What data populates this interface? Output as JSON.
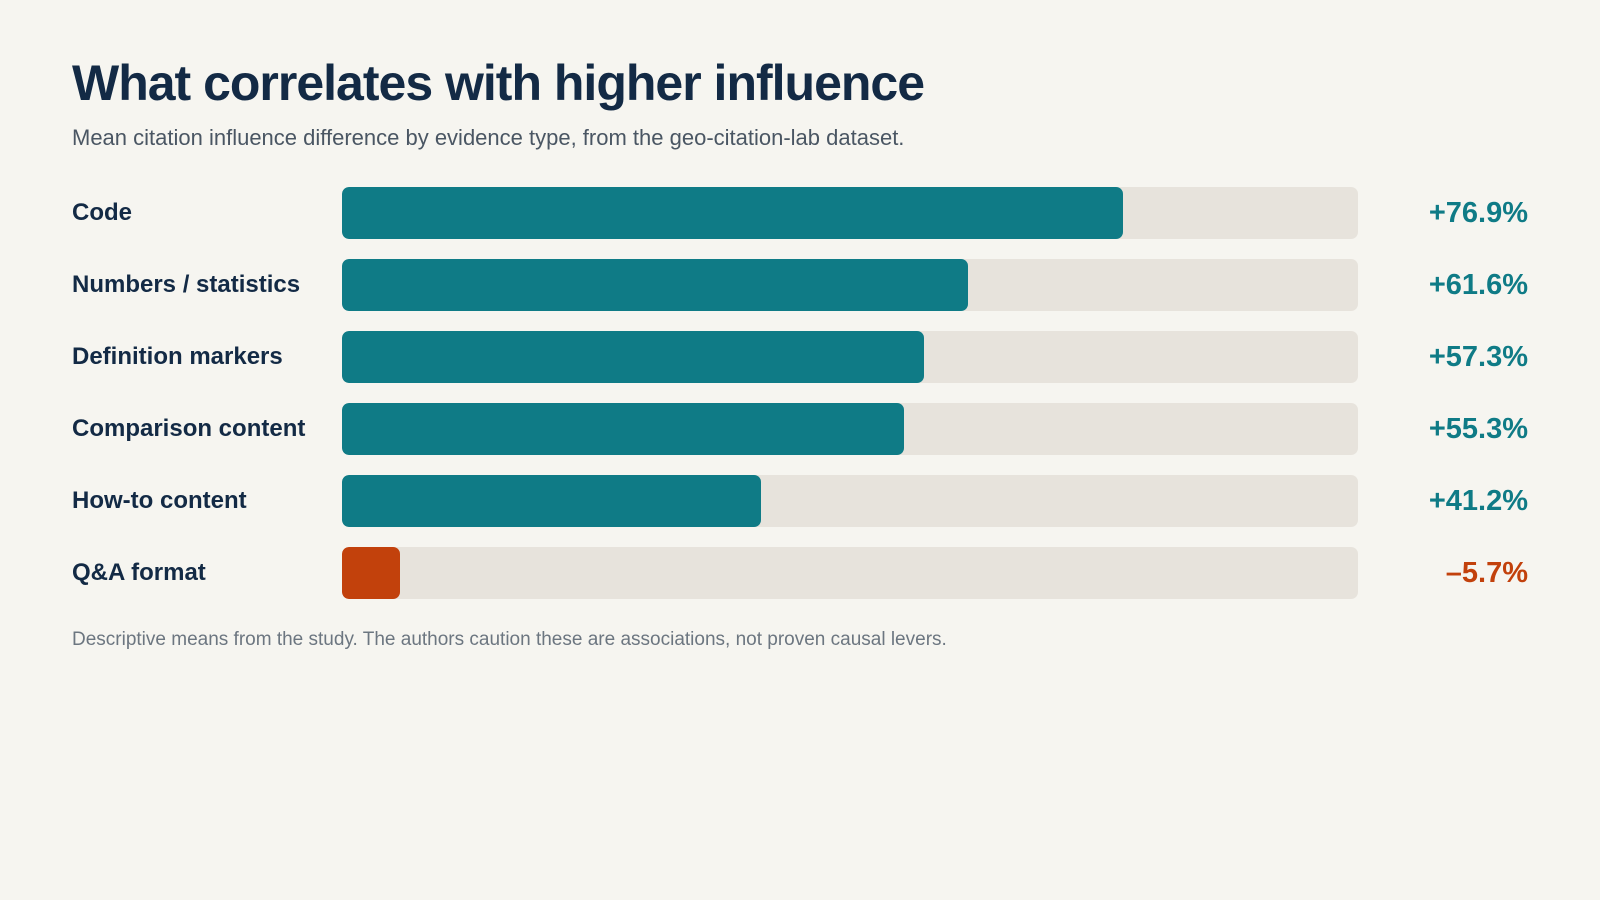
{
  "header": {
    "title": "What correlates with higher influence",
    "subtitle": "Mean citation influence difference by evidence type, from the geo-citation-lab dataset."
  },
  "chart_data": {
    "type": "bar",
    "orientation": "horizontal",
    "categories": [
      "Code",
      "Numbers / statistics",
      "Definition markers",
      "Comparison content",
      "How-to content",
      "Q&A format"
    ],
    "values": [
      76.9,
      61.6,
      57.3,
      55.3,
      41.2,
      -5.7
    ],
    "value_labels": [
      "+76.9%",
      "+61.6%",
      "+57.3%",
      "+55.3%",
      "+41.2%",
      "–5.7%"
    ],
    "unit": "%",
    "xlim": [
      0,
      100
    ],
    "grid": false,
    "colors": {
      "positive": "#0f7b86",
      "negative": "#c2410c",
      "track": "#e7e3dc"
    }
  },
  "footnote": "Descriptive means from the study. The authors caution these are associations, not proven causal levers."
}
